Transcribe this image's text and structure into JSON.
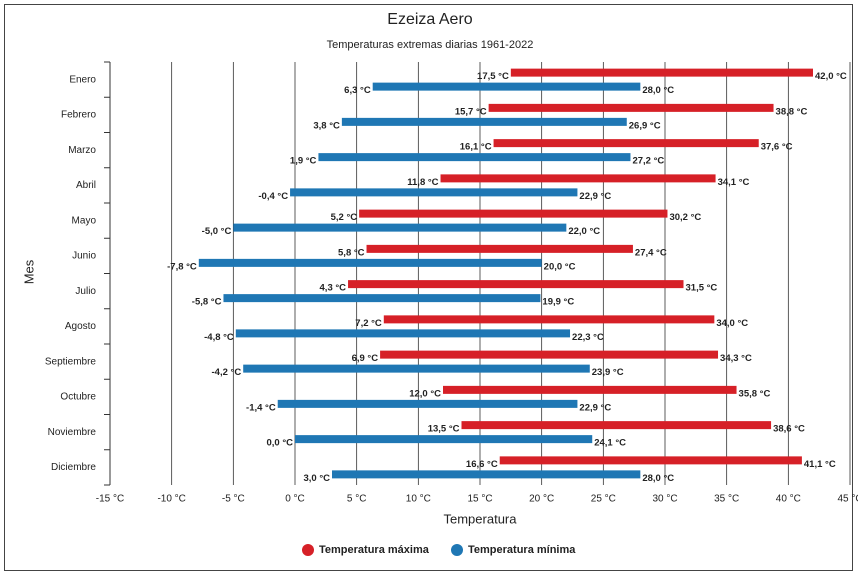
{
  "chart_data": {
    "type": "range-bar",
    "title": "Ezeiza Aero",
    "subtitle": "Temperaturas extremas diarias 1961-2022",
    "x_label": "Temperatura",
    "y_label": "Mes",
    "categories": [
      "Enero",
      "Febrero",
      "Marzo",
      "Abril",
      "Mayo",
      "Junio",
      "Julio",
      "Agosto",
      "Septiembre",
      "Octubre",
      "Noviembre",
      "Diciembre"
    ],
    "series": [
      {
        "name": "Temperatura máxima",
        "color": "#d62027",
        "values": [
          [
            17.5,
            42.0
          ],
          [
            15.7,
            38.8
          ],
          [
            16.1,
            37.6
          ],
          [
            11.8,
            34.1
          ],
          [
            5.2,
            30.2
          ],
          [
            5.8,
            27.4
          ],
          [
            4.3,
            31.5
          ],
          [
            7.2,
            34.0
          ],
          [
            6.9,
            34.3
          ],
          [
            12.0,
            35.8
          ],
          [
            13.5,
            38.6
          ],
          [
            16.6,
            41.1
          ]
        ],
        "value_labels": [
          [
            "17,5 °C",
            "42,0 °C"
          ],
          [
            "15,7 °C",
            "38,8 °C"
          ],
          [
            "16,1 °C",
            "37,6 °C"
          ],
          [
            "11,8 °C",
            "34,1 °C"
          ],
          [
            "5,2 °C",
            "30,2 °C"
          ],
          [
            "5,8 °C",
            "27,4 °C"
          ],
          [
            "4,3 °C",
            "31,5 °C"
          ],
          [
            "7,2 °C",
            "34,0 °C"
          ],
          [
            "6,9 °C",
            "34,3 °C"
          ],
          [
            "12,0 °C",
            "35,8 °C"
          ],
          [
            "13,5 °C",
            "38,6 °C"
          ],
          [
            "16,6 °C",
            "41,1 °C"
          ]
        ]
      },
      {
        "name": "Temperatura mínima",
        "color": "#1f77b4",
        "values": [
          [
            6.3,
            28.0
          ],
          [
            3.8,
            26.9
          ],
          [
            1.9,
            27.2
          ],
          [
            -0.4,
            22.9
          ],
          [
            -5.0,
            22.0
          ],
          [
            -7.8,
            20.0
          ],
          [
            -5.8,
            19.9
          ],
          [
            -4.8,
            22.3
          ],
          [
            -4.2,
            23.9
          ],
          [
            -1.4,
            22.9
          ],
          [
            0.0,
            24.1
          ],
          [
            3.0,
            28.0
          ]
        ],
        "value_labels": [
          [
            "6,3 °C",
            "28,0 °C"
          ],
          [
            "3,8 °C",
            "26,9 °C"
          ],
          [
            "1,9 °C",
            "27,2 °C"
          ],
          [
            "-0,4 °C",
            "22,9 °C"
          ],
          [
            "-5,0 °C",
            "22,0 °C"
          ],
          [
            "-7,8 °C",
            "20,0 °C"
          ],
          [
            "-5,8 °C",
            "19,9 °C"
          ],
          [
            "-4,8 °C",
            "22,3 °C"
          ],
          [
            "-4,2 °C",
            "23,9 °C"
          ],
          [
            "-1,4 °C",
            "22,9 °C"
          ],
          [
            "0,0 °C",
            "24,1 °C"
          ],
          [
            "3,0 °C",
            "28,0 °C"
          ]
        ]
      }
    ],
    "xlim": [
      -15,
      45
    ],
    "xticks": [
      {
        "value": -15,
        "label": "-15 °C"
      },
      {
        "value": -10,
        "label": "-10 °C"
      },
      {
        "value": -5,
        "label": "-5 °C"
      },
      {
        "value": 0,
        "label": "0 °C"
      },
      {
        "value": 5,
        "label": "5 °C"
      },
      {
        "value": 10,
        "label": "10 °C"
      },
      {
        "value": 15,
        "label": "15 °C"
      },
      {
        "value": 20,
        "label": "20 °C"
      },
      {
        "value": 25,
        "label": "25 °C"
      },
      {
        "value": 30,
        "label": "30 °C"
      },
      {
        "value": 35,
        "label": "35 °C"
      },
      {
        "value": 40,
        "label": "40 °C"
      },
      {
        "value": 45,
        "label": "45 °C"
      }
    ],
    "grid": true,
    "legend": "bottom"
  }
}
